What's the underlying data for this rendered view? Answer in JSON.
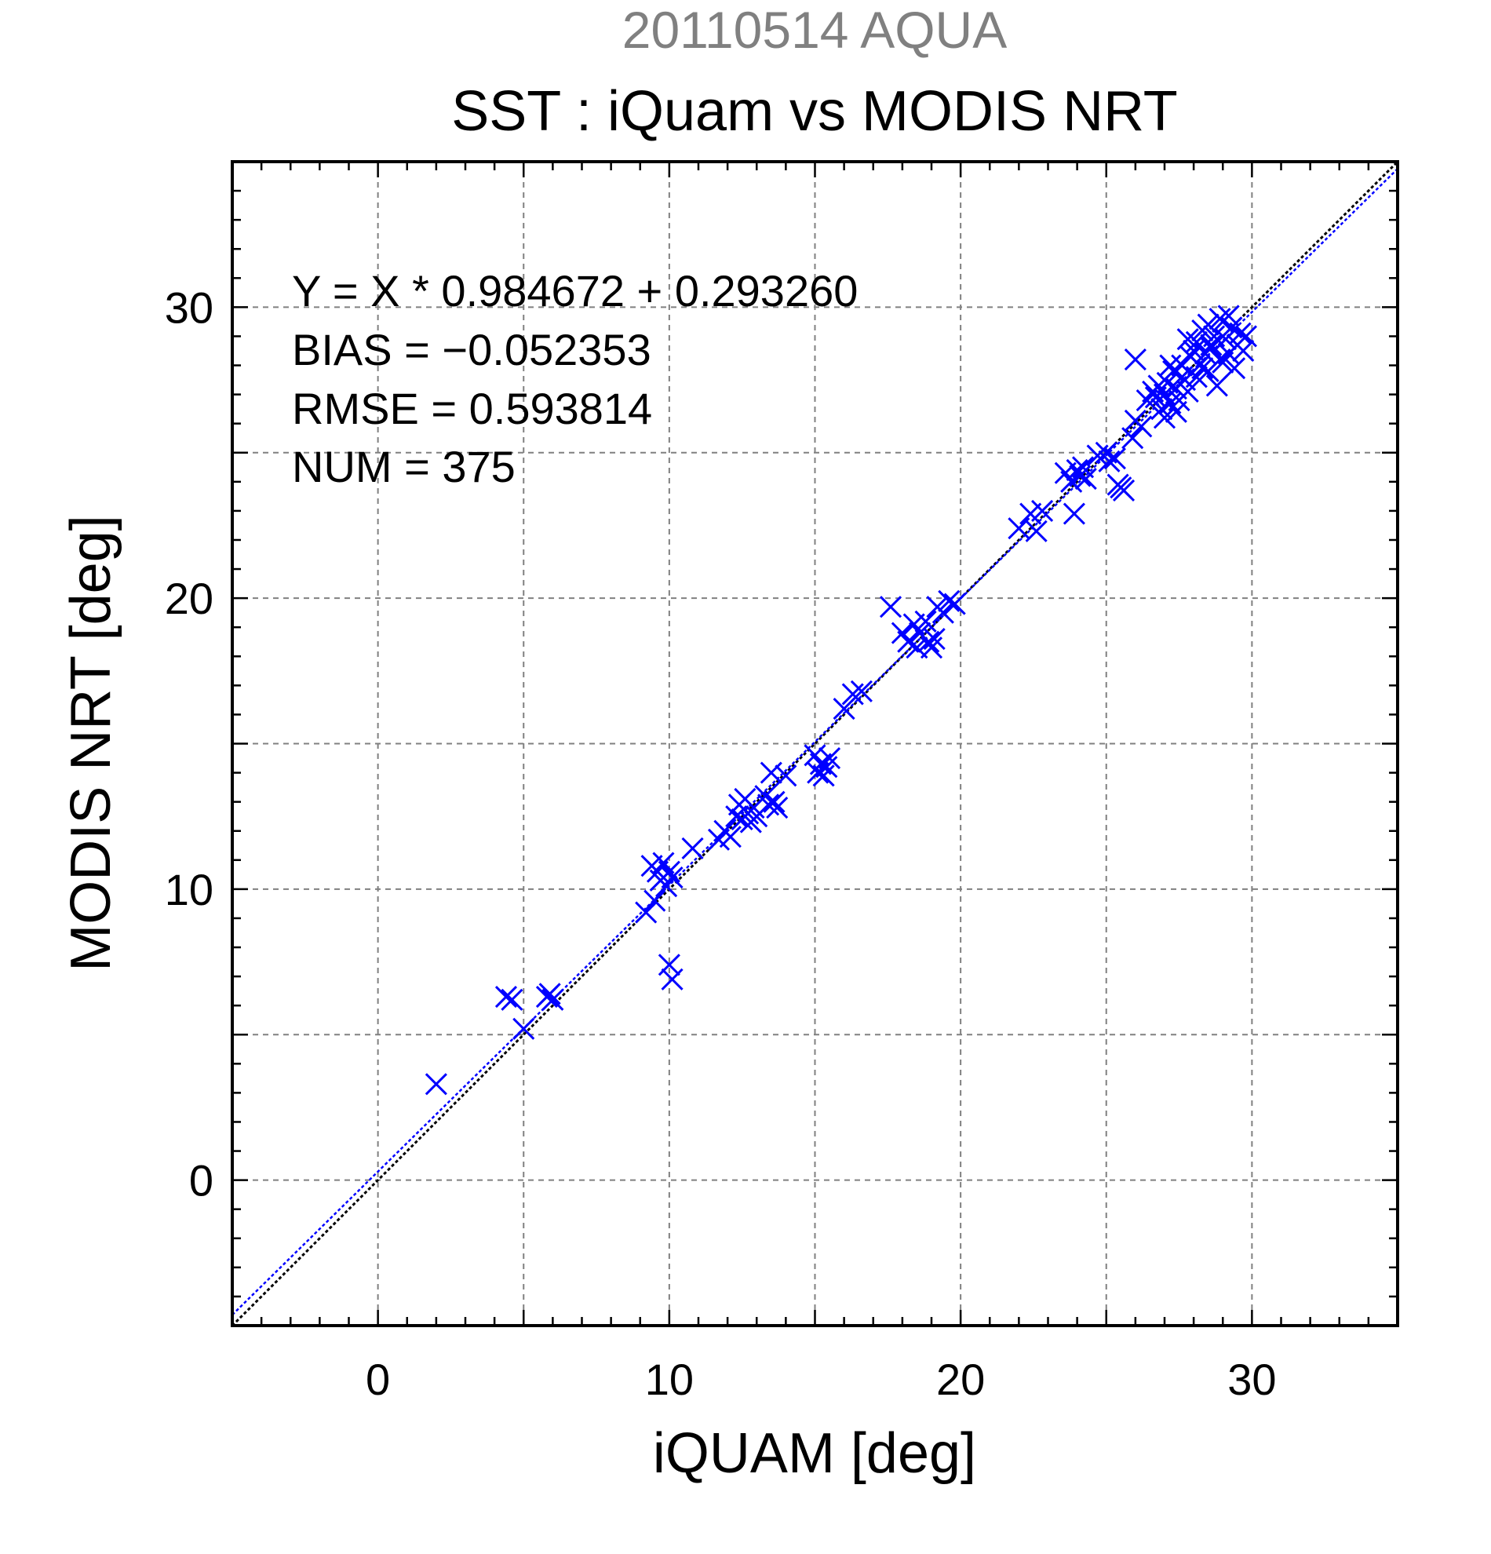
{
  "chart_data": {
    "type": "scatter",
    "title": "SST : iQuam vs MODIS NRT",
    "supertitle": "20110514 AQUA",
    "xlabel": "iQUAM [deg]",
    "ylabel": "MODIS NRT [deg]",
    "xlim": [
      -5,
      35
    ],
    "ylim": [
      -5,
      35
    ],
    "xticks": [
      0,
      10,
      20,
      30
    ],
    "yticks": [
      0,
      10,
      20,
      30
    ],
    "xtick_labels": [
      "0",
      "10",
      "20",
      "30"
    ],
    "ytick_labels": [
      "0",
      "10",
      "20",
      "30"
    ],
    "grid": true,
    "marker": "x",
    "colors": {
      "points": "#0000ff",
      "fit_line": "#0000ff",
      "identity_line": "#000000",
      "supertitle": "#808080"
    },
    "stats": [
      "Y = X * 0.984672 + 0.293260",
      "BIAS = −0.052353",
      "RMSE = 0.593814",
      "NUM = 375"
    ],
    "fit": {
      "slope": 0.984672,
      "intercept": 0.29326
    },
    "points": [
      [
        2.0,
        3.3
      ],
      [
        4.4,
        6.3
      ],
      [
        4.6,
        6.2
      ],
      [
        5.0,
        5.2
      ],
      [
        5.8,
        6.3
      ],
      [
        5.9,
        6.4
      ],
      [
        6.0,
        6.2
      ],
      [
        9.2,
        9.2
      ],
      [
        9.4,
        10.8
      ],
      [
        9.5,
        9.6
      ],
      [
        9.6,
        10.6
      ],
      [
        9.7,
        10.3
      ],
      [
        9.8,
        10.9
      ],
      [
        9.9,
        10.1
      ],
      [
        10.0,
        10.6
      ],
      [
        10.1,
        10.4
      ],
      [
        10.0,
        7.4
      ],
      [
        10.1,
        6.9
      ],
      [
        10.8,
        11.4
      ],
      [
        11.7,
        11.7
      ],
      [
        11.9,
        12.0
      ],
      [
        12.1,
        11.8
      ],
      [
        12.3,
        12.5
      ],
      [
        12.4,
        12.9
      ],
      [
        12.5,
        12.4
      ],
      [
        12.6,
        13.1
      ],
      [
        12.7,
        12.6
      ],
      [
        12.8,
        12.3
      ],
      [
        12.9,
        12.8
      ],
      [
        13.0,
        12.5
      ],
      [
        13.3,
        13.2
      ],
      [
        13.4,
        12.9
      ],
      [
        13.5,
        14.0
      ],
      [
        13.6,
        13.0
      ],
      [
        13.7,
        12.8
      ],
      [
        14.0,
        13.9
      ],
      [
        15.0,
        14.6
      ],
      [
        15.1,
        14.0
      ],
      [
        15.2,
        14.3
      ],
      [
        15.3,
        13.9
      ],
      [
        15.5,
        14.5
      ],
      [
        15.4,
        14.2
      ],
      [
        16.0,
        16.2
      ],
      [
        16.3,
        16.7
      ],
      [
        16.6,
        16.8
      ],
      [
        17.6,
        19.7
      ],
      [
        18.0,
        18.8
      ],
      [
        18.2,
        18.5
      ],
      [
        18.4,
        19.1
      ],
      [
        18.5,
        18.3
      ],
      [
        18.6,
        18.8
      ],
      [
        18.8,
        19.2
      ],
      [
        18.9,
        18.5
      ],
      [
        19.0,
        18.3
      ],
      [
        19.1,
        18.6
      ],
      [
        19.2,
        19.7
      ],
      [
        19.4,
        19.5
      ],
      [
        19.6,
        19.9
      ],
      [
        19.8,
        19.8
      ],
      [
        22.0,
        22.4
      ],
      [
        22.4,
        22.9
      ],
      [
        22.6,
        22.3
      ],
      [
        22.8,
        23.0
      ],
      [
        23.6,
        24.3
      ],
      [
        23.8,
        24.0
      ],
      [
        23.9,
        22.9
      ],
      [
        24.0,
        24.4
      ],
      [
        24.1,
        24.2
      ],
      [
        24.2,
        24.5
      ],
      [
        24.3,
        24.1
      ],
      [
        24.7,
        24.9
      ],
      [
        25.0,
        25.0
      ],
      [
        25.1,
        24.7
      ],
      [
        25.3,
        24.8
      ],
      [
        25.4,
        23.9
      ],
      [
        25.5,
        23.8
      ],
      [
        25.6,
        23.7
      ],
      [
        25.9,
        25.5
      ],
      [
        26.0,
        26.1
      ],
      [
        26.2,
        25.9
      ],
      [
        26.0,
        28.2
      ],
      [
        26.4,
        26.8
      ],
      [
        26.6,
        27.1
      ],
      [
        26.7,
        26.9
      ],
      [
        26.8,
        27.3
      ],
      [
        26.9,
        26.5
      ],
      [
        27.0,
        27.0
      ],
      [
        27.1,
        27.4
      ],
      [
        27.2,
        26.7
      ],
      [
        27.3,
        27.8
      ],
      [
        27.4,
        27.2
      ],
      [
        27.5,
        26.8
      ],
      [
        27.6,
        28.0
      ],
      [
        27.7,
        27.5
      ],
      [
        27.8,
        27.1
      ],
      [
        27.9,
        28.3
      ],
      [
        28.0,
        28.5
      ],
      [
        28.1,
        28.8
      ],
      [
        28.2,
        28.0
      ],
      [
        28.3,
        29.2
      ],
      [
        28.4,
        28.4
      ],
      [
        28.5,
        27.8
      ],
      [
        28.6,
        28.6
      ],
      [
        28.7,
        29.0
      ],
      [
        28.8,
        27.3
      ],
      [
        28.9,
        28.2
      ],
      [
        29.0,
        29.5
      ],
      [
        29.1,
        28.9
      ],
      [
        29.2,
        28.4
      ],
      [
        29.3,
        29.3
      ],
      [
        29.4,
        27.9
      ],
      [
        29.5,
        28.7
      ],
      [
        29.6,
        29.1
      ],
      [
        29.7,
        28.5
      ],
      [
        29.8,
        29.0
      ],
      [
        28.1,
        27.6
      ],
      [
        27.4,
        26.4
      ],
      [
        27.0,
        26.2
      ],
      [
        28.5,
        29.4
      ],
      [
        28.9,
        29.6
      ],
      [
        29.2,
        29.7
      ],
      [
        27.8,
        28.9
      ],
      [
        28.3,
        27.9
      ],
      [
        29.0,
        28.1
      ],
      [
        28.6,
        28.7
      ],
      [
        27.6,
        27.6
      ],
      [
        27.2,
        28.0
      ]
    ]
  }
}
